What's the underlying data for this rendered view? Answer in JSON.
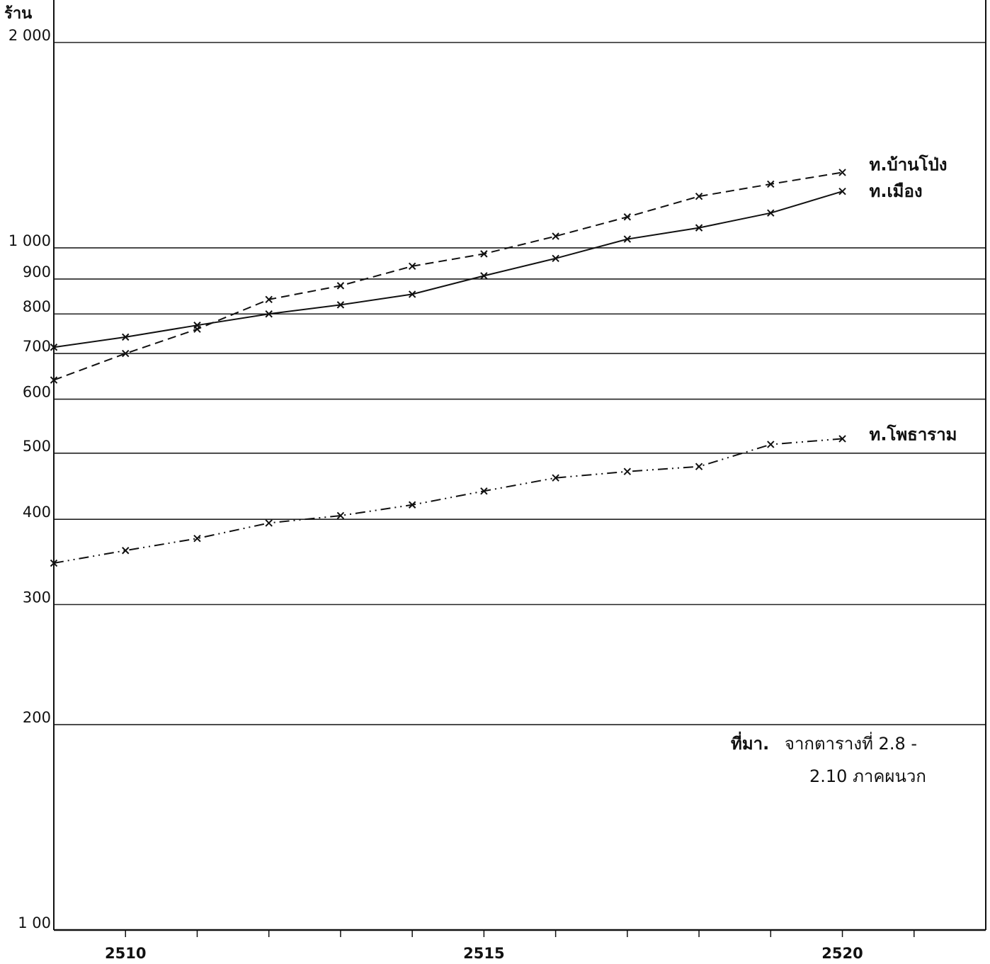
{
  "chart_data": {
    "type": "line",
    "y_unit_label": "ร้าน",
    "y_scale": "log",
    "ylim": [
      100,
      2000
    ],
    "xlim": [
      2509,
      2522
    ],
    "y_ticks": [
      {
        "value": 2000,
        "label": "2 000"
      },
      {
        "value": 1000,
        "label": "1 000"
      },
      {
        "value": 900,
        "label": "900"
      },
      {
        "value": 800,
        "label": "800"
      },
      {
        "value": 700,
        "label": "700"
      },
      {
        "value": 600,
        "label": "600"
      },
      {
        "value": 500,
        "label": "500"
      },
      {
        "value": 400,
        "label": "400"
      },
      {
        "value": 300,
        "label": "300"
      },
      {
        "value": 200,
        "label": "200"
      },
      {
        "value": 100,
        "label": "1 00"
      }
    ],
    "x_tick_labels": [
      {
        "value": 2510,
        "label": "2510"
      },
      {
        "value": 2515,
        "label": "2515"
      },
      {
        "value": 2520,
        "label": "2520"
      }
    ],
    "x_minor_ticks": [
      2510,
      2511,
      2512,
      2513,
      2514,
      2515,
      2516,
      2517,
      2518,
      2519,
      2520,
      2521
    ],
    "series": [
      {
        "name": "ท.บ้านโป่ง",
        "style": "dashed",
        "x": [
          2509,
          2510,
          2511,
          2512,
          2513,
          2514,
          2515,
          2516,
          2517,
          2518,
          2519,
          2520
        ],
        "values": [
          640,
          700,
          760,
          840,
          880,
          940,
          980,
          1040,
          1110,
          1190,
          1240,
          1290
        ]
      },
      {
        "name": "ท.เมือง",
        "style": "solid",
        "x": [
          2509,
          2510,
          2511,
          2512,
          2513,
          2514,
          2515,
          2516,
          2517,
          2518,
          2519,
          2520
        ],
        "values": [
          715,
          740,
          770,
          800,
          825,
          855,
          910,
          965,
          1030,
          1070,
          1125,
          1210
        ]
      },
      {
        "name": "ท.โพธาราม",
        "style": "dashdotdot",
        "x": [
          2509,
          2510,
          2511,
          2512,
          2513,
          2514,
          2515,
          2516,
          2517,
          2518,
          2519,
          2520
        ],
        "values": [
          345,
          360,
          375,
          395,
          405,
          420,
          440,
          460,
          470,
          478,
          515,
          525
        ]
      }
    ],
    "grid": "horizontal",
    "legend": "right, at line ends"
  },
  "source_note": {
    "lead": "ที่มา.",
    "line1": "จากตารางที่ 2.8 -",
    "line2": "2.10 ภาคผนวก"
  }
}
